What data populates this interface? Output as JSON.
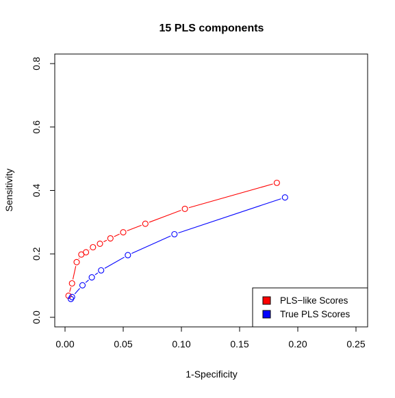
{
  "chart_data": {
    "type": "line",
    "title": "15 PLS components",
    "xlabel": "1-Specificity",
    "ylabel": "Sensitivity",
    "xlim": [
      0,
      0.25
    ],
    "ylim": [
      0,
      0.8
    ],
    "x_ticks": [
      0.0,
      0.05,
      0.1,
      0.15,
      0.2,
      0.25
    ],
    "x_tick_labels": [
      "0.00",
      "0.05",
      "0.10",
      "0.15",
      "0.20",
      "0.25"
    ],
    "y_ticks": [
      0.0,
      0.2,
      0.4,
      0.6,
      0.8
    ],
    "y_tick_labels": [
      "0.0",
      "0.2",
      "0.4",
      "0.6",
      "0.8"
    ],
    "grid": false,
    "legend": {
      "position": "bottom-right",
      "entries": [
        "PLS−like Scores",
        "True PLS Scores"
      ]
    },
    "series": [
      {
        "name": "PLS−like Scores",
        "color": "#ff0000",
        "marker": "open-circle",
        "points": [
          {
            "x": 0.003,
            "y": 0.068
          },
          {
            "x": 0.006,
            "y": 0.107
          },
          {
            "x": 0.01,
            "y": 0.174
          },
          {
            "x": 0.014,
            "y": 0.198
          },
          {
            "x": 0.018,
            "y": 0.205
          },
          {
            "x": 0.024,
            "y": 0.221
          },
          {
            "x": 0.03,
            "y": 0.232
          },
          {
            "x": 0.039,
            "y": 0.249
          },
          {
            "x": 0.05,
            "y": 0.268
          },
          {
            "x": 0.069,
            "y": 0.295
          },
          {
            "x": 0.103,
            "y": 0.342
          },
          {
            "x": 0.182,
            "y": 0.424
          }
        ]
      },
      {
        "name": "True PLS Scores",
        "color": "#0000ff",
        "marker": "open-circle",
        "points": [
          {
            "x": 0.005,
            "y": 0.058
          },
          {
            "x": 0.006,
            "y": 0.064
          },
          {
            "x": 0.015,
            "y": 0.101
          },
          {
            "x": 0.023,
            "y": 0.126
          },
          {
            "x": 0.031,
            "y": 0.148
          },
          {
            "x": 0.054,
            "y": 0.196
          },
          {
            "x": 0.094,
            "y": 0.262
          },
          {
            "x": 0.189,
            "y": 0.378
          }
        ]
      }
    ]
  }
}
